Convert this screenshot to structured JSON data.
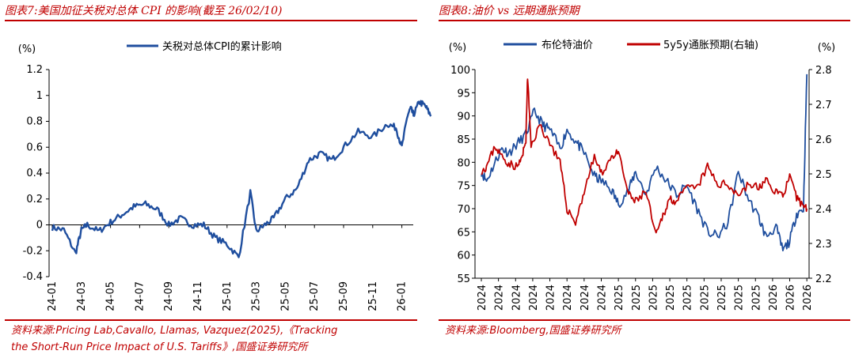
{
  "left": {
    "title": "图表7:美国加征关税对总体 CPI 的影响(截至 26/02/10)",
    "source_line1": "资料来源:Pricing Lab,Cavallo, Llamas, Vazquez(2025),《Tracking",
    "source_line2": "the Short-Run Price Impact of U.S. Tariffs》,国盛证券研究所",
    "colors": {
      "accent": "#c00000",
      "series": "#1f4e9e"
    }
  },
  "right": {
    "title": "图表8:油价 vs 远期通胀预期",
    "source": "资料来源:Bloomberg,国盛证券研究所",
    "colors": {
      "accent": "#c00000",
      "oil": "#1f4e9e",
      "infl": "#c00000"
    }
  },
  "chart_data": [
    {
      "type": "line",
      "title": "图表7:美国加征关税对总体 CPI 的影响(截至 26/02/10)",
      "ylabel": "(%)",
      "ylim": [
        -0.4,
        1.2
      ],
      "yticks": [
        "1.2",
        "1",
        "0.8",
        "0.6",
        "0.4",
        "0.2",
        "0",
        "-0.2",
        "-0.4"
      ],
      "categories": [
        "24-01",
        "24-03",
        "24-05",
        "24-07",
        "24-09",
        "24-11",
        "25-01",
        "25-03",
        "25-05",
        "25-07",
        "25-09",
        "25-11",
        "26-01"
      ],
      "series": [
        {
          "name": "关税对总体CPI的累计影响",
          "x": [
            0,
            0.4,
            0.8,
            1.0,
            1.2,
            1.6,
            2.0,
            2.4,
            2.8,
            3.2,
            3.6,
            4.0,
            4.4,
            4.8,
            5.2,
            5.6,
            6.0,
            6.4,
            6.8,
            7.0,
            7.3,
            7.6,
            8.0,
            8.4,
            8.8,
            9.2,
            9.6,
            10.0,
            10.5,
            11.0,
            11.5,
            11.8,
            12.0,
            12.2,
            12.3,
            12.4,
            12.6,
            12.8,
            13.0
          ],
          "values": [
            -0.02,
            -0.04,
            -0.22,
            -0.04,
            0.0,
            -0.05,
            0.02,
            0.08,
            0.14,
            0.16,
            0.12,
            0.0,
            0.05,
            0.0,
            0.0,
            -0.1,
            -0.15,
            -0.25,
            0.25,
            -0.05,
            0.0,
            0.05,
            0.2,
            0.28,
            0.5,
            0.55,
            0.5,
            0.6,
            0.72,
            0.68,
            0.78,
            0.75,
            0.6,
            0.85,
            0.9,
            0.85,
            0.95,
            0.92,
            0.84
          ]
        }
      ]
    },
    {
      "type": "line",
      "title": "图表8:油价 vs 远期通胀预期",
      "ylabel_left": "(%)",
      "ylabel_right": "(%)",
      "ylim_left": [
        55,
        100
      ],
      "ylim_right": [
        2.2,
        2.8
      ],
      "yticks_left": [
        "100",
        "95",
        "90",
        "85",
        "80",
        "75",
        "70",
        "65",
        "60",
        "55"
      ],
      "yticks_right": [
        "2.8",
        "2.7",
        "2.6",
        "2.5",
        "2.4",
        "2.3",
        "2.2"
      ],
      "categories": [
        "2024",
        "2024",
        "2024",
        "2024",
        "2024",
        "2024",
        "2024",
        "2024",
        "2025",
        "2025",
        "2025",
        "2025",
        "2025",
        "2025",
        "2025",
        "2025",
        "2025",
        "2026",
        "2026",
        "2026"
      ],
      "series": [
        {
          "name": "布伦特油价",
          "axis": "left",
          "x": [
            0,
            0.3,
            0.8,
            1.2,
            1.6,
            2.1,
            2.6,
            3.1,
            3.6,
            4.0,
            4.6,
            5.0,
            5.6,
            6.0,
            6.6,
            7.0,
            7.6,
            8.0,
            8.6,
            9.0,
            9.6,
            10.2,
            10.8,
            11.4,
            12.0,
            12.6,
            13.2,
            13.8,
            14.4,
            15.0,
            15.6,
            16.2,
            16.6,
            17.2,
            17.6,
            18.0,
            18.4,
            18.8,
            19.0
          ],
          "values": [
            78,
            76,
            80,
            83,
            82,
            84,
            86,
            91,
            88,
            87,
            83,
            87,
            84,
            82,
            77,
            76,
            74,
            71,
            74,
            78,
            73,
            79,
            76,
            73,
            75,
            70,
            65,
            64,
            67,
            78,
            72,
            68,
            64,
            66,
            61,
            63,
            69,
            70,
            99
          ]
        },
        {
          "name": "5y5y通胀预期(右轴)",
          "axis": "right",
          "x": [
            0,
            0.3,
            0.8,
            1.2,
            1.6,
            2.1,
            2.4,
            2.6,
            2.7,
            2.9,
            3.4,
            4.0,
            4.6,
            5.0,
            5.5,
            6.0,
            6.6,
            7.0,
            7.6,
            8.0,
            8.6,
            9.0,
            9.6,
            10.2,
            10.6,
            11.0,
            11.4,
            12.0,
            12.6,
            13.2,
            13.8,
            14.4,
            15.0,
            15.6,
            16.2,
            16.6,
            17.2,
            17.6,
            18.0,
            18.4,
            18.8,
            19.0
          ],
          "values": [
            2.51,
            2.52,
            2.58,
            2.55,
            2.53,
            2.52,
            2.55,
            2.6,
            2.78,
            2.58,
            2.64,
            2.59,
            2.53,
            2.4,
            2.36,
            2.45,
            2.55,
            2.5,
            2.55,
            2.56,
            2.44,
            2.42,
            2.45,
            2.32,
            2.38,
            2.43,
            2.42,
            2.46,
            2.46,
            2.52,
            2.47,
            2.47,
            2.44,
            2.47,
            2.46,
            2.48,
            2.45,
            2.44,
            2.49,
            2.43,
            2.41,
            2.4
          ]
        }
      ]
    }
  ]
}
